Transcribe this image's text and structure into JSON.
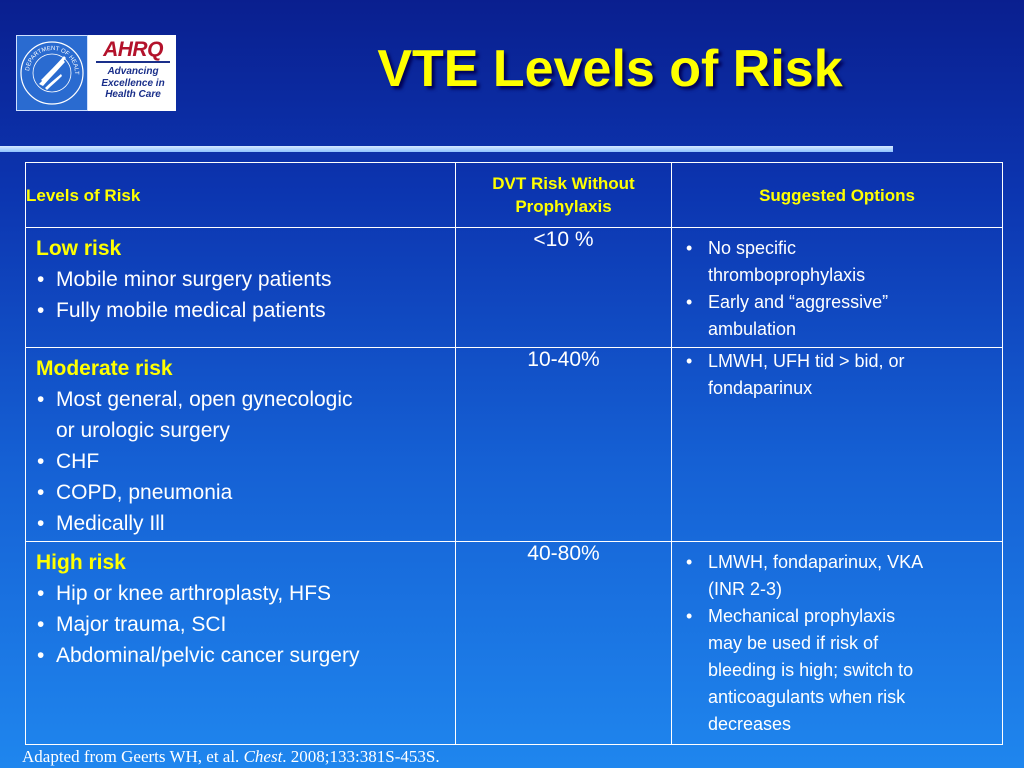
{
  "header": {
    "title": "VTE Levels of Risk",
    "ahrq_logo": {
      "mark": "AHRQ",
      "tagline": [
        "Advancing",
        "Excellence in",
        "Health Care"
      ]
    },
    "hhs_logo": {
      "icon": "hhs-eagle-icon",
      "seal_text": "DEPARTMENT OF HEALTH & HUMAN SERVICES USA"
    }
  },
  "table": {
    "headers": {
      "levels": "Levels of Risk",
      "dvt": [
        "DVT Risk Without",
        "Prophylaxis"
      ],
      "options": "Suggested Options"
    },
    "rows": [
      {
        "level": "Low risk",
        "criteria": [
          "Mobile minor surgery patients",
          "Fully mobile medical patients"
        ],
        "dvt_risk": "<10 %",
        "options": [
          [
            "No specific",
            "thromboprophylaxis"
          ],
          [
            "Early and “aggressive”",
            "ambulation"
          ]
        ]
      },
      {
        "level": "Moderate risk",
        "criteria": [
          [
            "Most general, open gynecologic",
            "or urologic surgery"
          ],
          "CHF",
          "COPD, pneumonia",
          "Medically Ill"
        ],
        "dvt_risk": "10-40%",
        "options": [
          [
            "LMWH, UFH tid > bid, or",
            "fondaparinux"
          ]
        ]
      },
      {
        "level": "High risk",
        "criteria": [
          "Hip or knee arthroplasty, HFS",
          "Major trauma, SCI",
          "Abdominal/pelvic cancer surgery"
        ],
        "dvt_risk": "40-80%",
        "options": [
          [
            "LMWH, fondaparinux, VKA",
            "(INR 2-3)"
          ],
          [
            "Mechanical prophylaxis",
            "may be used if risk of",
            "bleeding is high; switch to",
            "anticoagulants when risk",
            "decreases"
          ]
        ]
      }
    ]
  },
  "citation": {
    "prefix": "Adapted from Geerts WH, et al. ",
    "journal": "Chest",
    "suffix": ". 2008;133:381S-453S."
  },
  "colors": {
    "title": "#ffff00",
    "background_top": "#0a1f8f",
    "background_bottom": "#1f86ee",
    "ahrq_red": "#b3122b",
    "ahrq_navy": "#1a2f8a"
  }
}
